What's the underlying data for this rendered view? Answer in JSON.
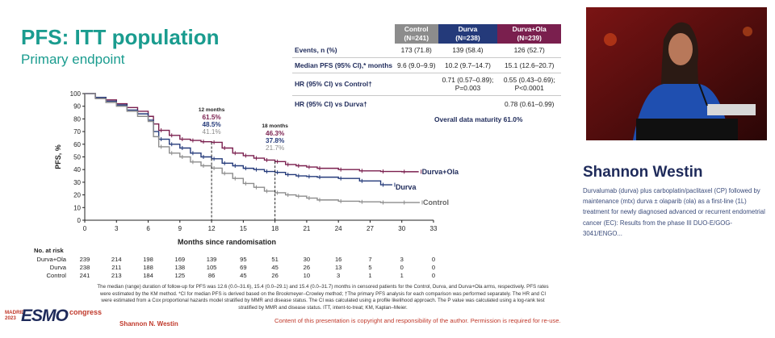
{
  "slide": {
    "title": "PFS: ITT population",
    "subtitle": "Primary endpoint",
    "presenter": "Shannon N. Westin",
    "copyright": "Content of this presentation is copyright and responsibility of the author. Permission is required for re-use.",
    "logo": {
      "madrid": "MADRID",
      "year": "2023",
      "esmo": "ESMO",
      "congress": "congress"
    },
    "footnote": "The median (range) duration of follow-up for PFS was 12.6 (0.0–31.6), 15.4 (0.0–29.1) and 15.4 (0.0–31.7) months in censored patients for the Control, Durva, and Durva+Ola arms, respectively. PFS rates were estimated by the KM method. *CI for median PFS is derived based on the Brookmeyer–Crowley method; †The primary PFS analysis for each comparison was performed separately. The HR and CI were estimated from a Cox proportional hazards model stratified by MMR and disease status. The CI was calculated using a profile likelihood approach. The P value was calculated using a log-rank test stratified by MMR and disease status. ITT, intent-to-treat; KM, Kaplan–Meier."
  },
  "stats_table": {
    "headers": [
      {
        "name": "Control",
        "n": "(N=241)"
      },
      {
        "name": "Durva",
        "n": "(N=238)"
      },
      {
        "name": "Durva+Ola",
        "n": "(N=239)"
      }
    ],
    "rows": [
      {
        "label": "Events, n (%)",
        "values": [
          "173 (71.8)",
          "139 (58.4)",
          "126 (52.7)"
        ]
      },
      {
        "label": "Median PFS (95% CI),* months",
        "values": [
          "9.6 (9.0–9.9)",
          "10.2 (9.7–14.7)",
          "15.1 (12.6–20.7)"
        ]
      },
      {
        "label": "HR (95% CI) vs Control†",
        "values": [
          "",
          "0.71 (0.57–0.89); P=0.003",
          "0.55 (0.43–0.69); P<0.0001"
        ]
      },
      {
        "label": "HR (95% CI) vs Durva†",
        "values": [
          "",
          "",
          "0.78 (0.61–0.99)"
        ]
      }
    ],
    "maturity": "Overall data maturity 61.0%"
  },
  "chart_data": {
    "type": "line",
    "xlabel": "Months since randomisation",
    "ylabel": "PFS, %",
    "xlim": [
      0,
      33
    ],
    "ylim": [
      0,
      100
    ],
    "x_ticks": [
      0,
      3,
      6,
      9,
      12,
      15,
      18,
      21,
      24,
      27,
      30,
      33
    ],
    "y_ticks": [
      0,
      10,
      20,
      30,
      40,
      50,
      60,
      70,
      80,
      90,
      100
    ],
    "colors": {
      "durva_ola": "#7a1f4e",
      "durva": "#243a7a",
      "control": "#8c8c8c"
    },
    "series": [
      {
        "name": "Durva+Ola",
        "key": "durva_ola",
        "x": [
          0,
          1,
          2,
          3,
          4,
          5,
          6,
          6.5,
          7,
          8,
          9,
          10,
          11,
          12,
          13,
          14,
          15,
          16,
          17,
          18,
          19,
          20,
          21,
          22,
          24,
          26,
          28,
          30,
          31.6
        ],
        "y": [
          100,
          97,
          95,
          92,
          89,
          86,
          82,
          76,
          71,
          67,
          64,
          63,
          62,
          61.5,
          57,
          53,
          51,
          49,
          47.5,
          46.3,
          44,
          43,
          42,
          41,
          40,
          39,
          38.5,
          38.3,
          38.3
        ]
      },
      {
        "name": "Durva",
        "key": "durva",
        "x": [
          0,
          1,
          2,
          3,
          4,
          5,
          6,
          6.5,
          7,
          8,
          9,
          10,
          11,
          12,
          13,
          14,
          15,
          16,
          17,
          18,
          19,
          20,
          21,
          22,
          24,
          26,
          28,
          29.1
        ],
        "y": [
          100,
          97,
          94,
          91,
          87,
          84,
          79,
          70,
          64,
          60,
          57,
          53,
          50,
          48.5,
          45,
          43,
          41,
          40,
          38.5,
          37.8,
          36,
          35,
          34.5,
          34,
          33,
          31,
          28,
          28
        ]
      },
      {
        "name": "Control",
        "key": "control",
        "x": [
          0,
          1,
          2,
          3,
          4,
          5,
          6,
          6.5,
          7,
          8,
          9,
          10,
          11,
          12,
          13,
          14,
          15,
          16,
          17,
          18,
          19,
          20,
          21,
          22,
          24,
          26,
          28,
          30,
          31.7
        ],
        "y": [
          100,
          96,
          93,
          90,
          86,
          82,
          78,
          66,
          58,
          53,
          50,
          46,
          43,
          41.1,
          37,
          33,
          29,
          26,
          23,
          21.7,
          20,
          19,
          17.5,
          16,
          15,
          14.5,
          14,
          14,
          14
        ]
      }
    ],
    "annotations": [
      {
        "month": "12 months",
        "x": 12,
        "values": [
          "61.5%",
          "48.5%",
          "41.1%"
        ]
      },
      {
        "month": "18 months",
        "x": 18,
        "values": [
          "46.3%",
          "37.8%",
          "21.7%"
        ]
      }
    ]
  },
  "at_risk": {
    "header": "No. at risk",
    "times": [
      0,
      3,
      6,
      9,
      12,
      15,
      18,
      21,
      24,
      27,
      30,
      33
    ],
    "rows": [
      {
        "label": "Durva+Ola",
        "values": [
          "239",
          "214",
          "198",
          "169",
          "139",
          "95",
          "51",
          "30",
          "16",
          "7",
          "3",
          "0"
        ]
      },
      {
        "label": "Durva",
        "values": [
          "238",
          "211",
          "188",
          "138",
          "105",
          "69",
          "45",
          "26",
          "13",
          "5",
          "0",
          "0"
        ]
      },
      {
        "label": "Control",
        "values": [
          "241",
          "213",
          "184",
          "125",
          "86",
          "45",
          "26",
          "10",
          "3",
          "1",
          "1",
          "0"
        ]
      }
    ]
  },
  "speaker": {
    "name": "Shannon Westin",
    "talk": "Durvalumab (durva) plus carboplatin/paclitaxel (CP) followed by maintenance (mtx) durva ± olaparib (ola) as a first-line (1L) treatment for newly diagnosed advanced or recurrent endometrial cancer (EC): Results from the phase III DUO-E/GOG-3041/ENGO..."
  }
}
